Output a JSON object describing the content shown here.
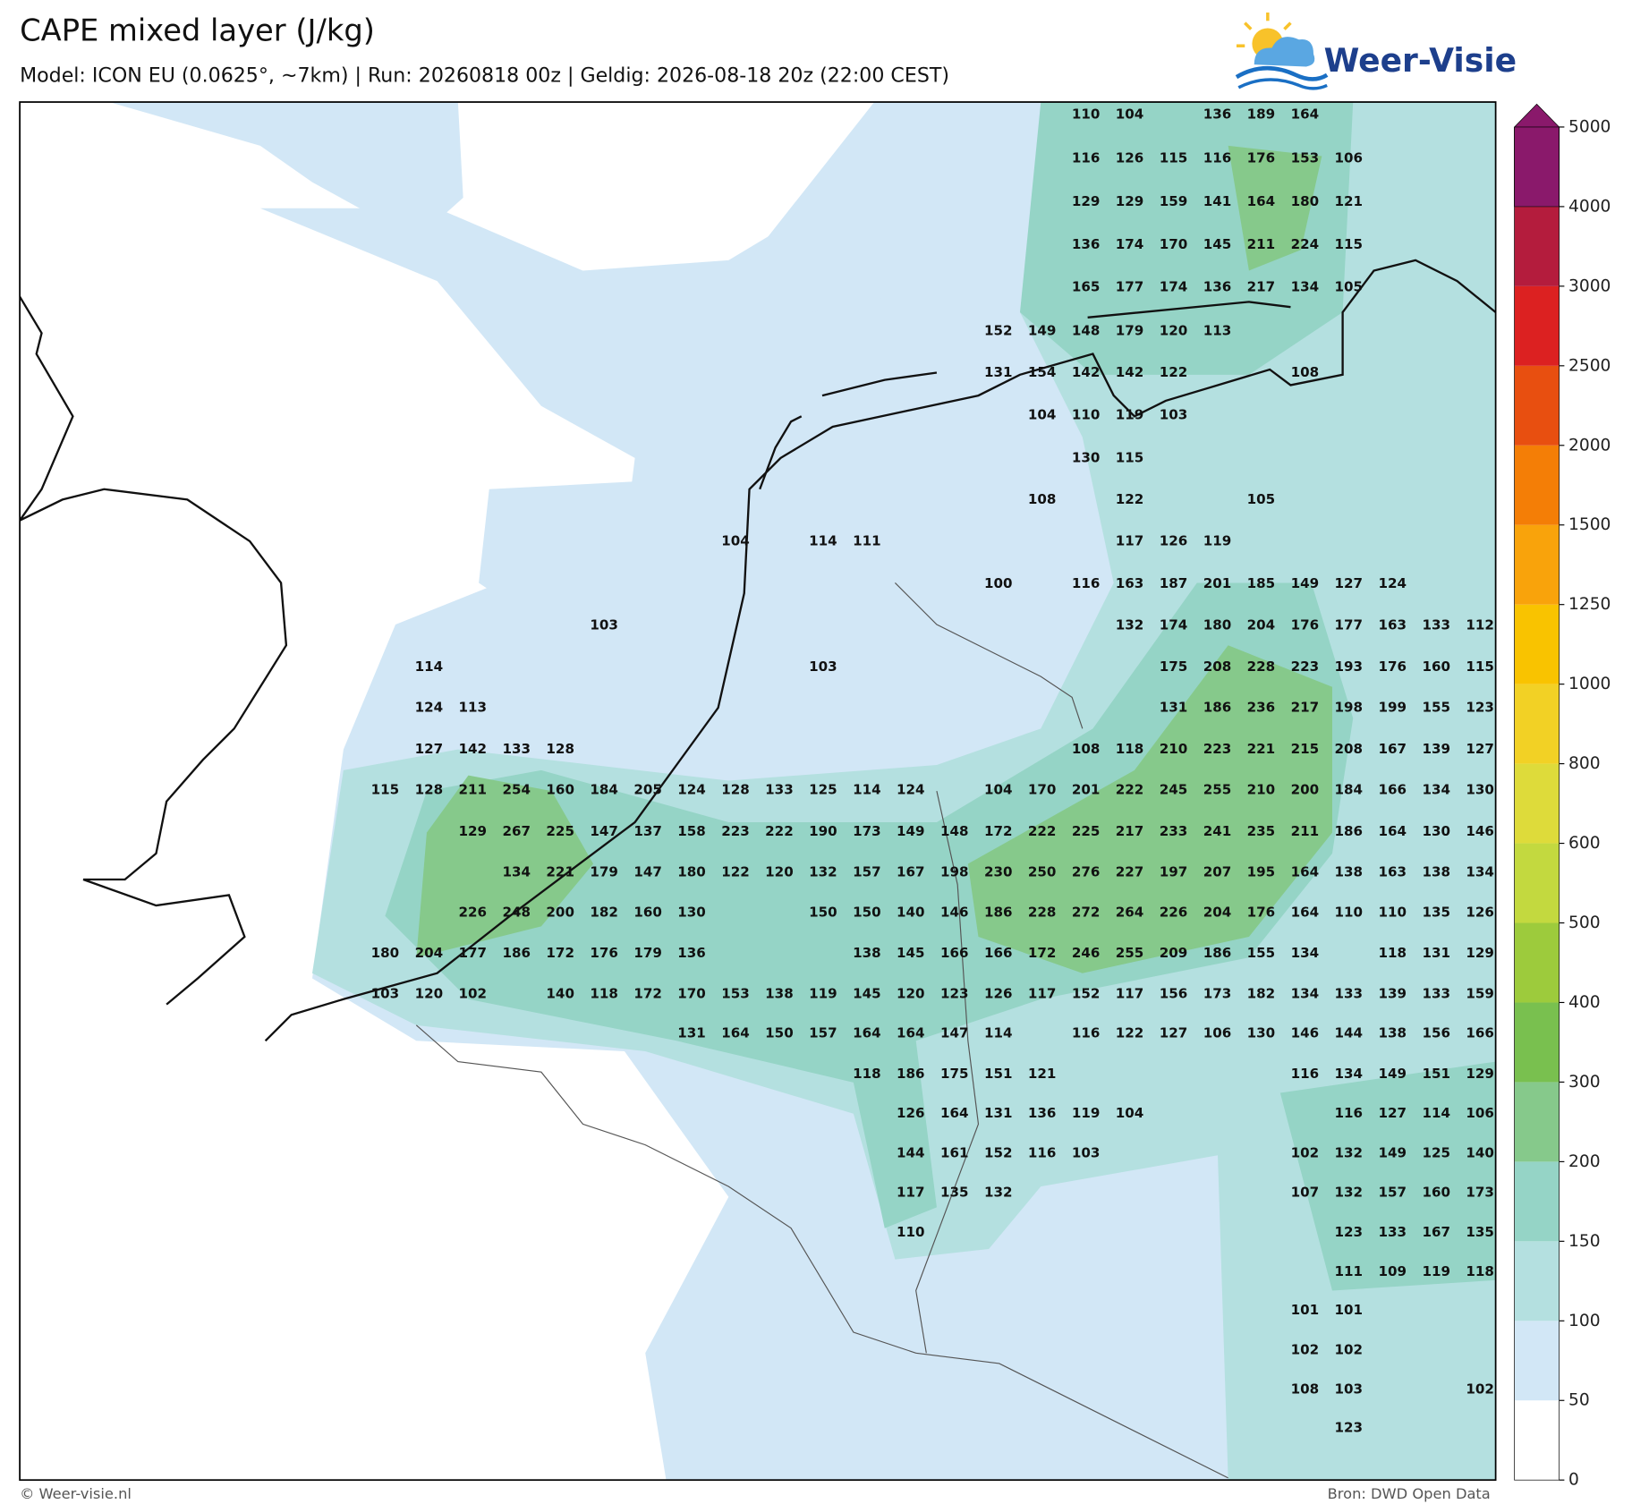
{
  "header": {
    "title": "CAPE mixed layer (J/kg)",
    "subtitle": "Model: ICON EU (0.0625°, ~7km)  |  Run: 20260818 00z  |  Geldig: 2026-08-18 20z (22:00 CEST)",
    "logo": "Weer-Visie"
  },
  "footer": {
    "copyright": "© Weer-visie.nl",
    "source": "Bron: DWD Open Data"
  },
  "colorbar": {
    "levels": [
      0,
      50,
      100,
      150,
      200,
      300,
      400,
      500,
      600,
      800,
      1000,
      1250,
      1500,
      2000,
      2500,
      3000,
      4000,
      5000
    ],
    "colors": [
      "#ffffff",
      "#d2e7f6",
      "#b4e0e0",
      "#95d4c6",
      "#86c98b",
      "#79c04f",
      "#9dcb3c",
      "#c3d93f",
      "#dedb3a",
      "#f2d125",
      "#f9c300",
      "#f9a30b",
      "#f47e06",
      "#e84f10",
      "#dc2121",
      "#b41c3d",
      "#8a196b"
    ]
  },
  "map": {
    "labels": [
      [
        null,
        null,
        null,
        null,
        null,
        null,
        null,
        null,
        null,
        null,
        null,
        null,
        null,
        null,
        null,
        null,
        110,
        104,
        null,
        136,
        189,
        164,
        null,
        null,
        null,
        null
      ],
      [
        null,
        null,
        null,
        null,
        null,
        null,
        null,
        null,
        null,
        null,
        null,
        null,
        null,
        null,
        null,
        null,
        116,
        126,
        115,
        116,
        176,
        153,
        106,
        null,
        null,
        null
      ],
      [
        null,
        null,
        null,
        null,
        null,
        null,
        null,
        null,
        null,
        null,
        null,
        null,
        null,
        null,
        null,
        null,
        129,
        129,
        159,
        141,
        164,
        180,
        121,
        null,
        null,
        null
      ],
      [
        null,
        null,
        null,
        null,
        null,
        null,
        null,
        null,
        null,
        null,
        null,
        null,
        null,
        null,
        null,
        null,
        136,
        174,
        170,
        145,
        211,
        224,
        115,
        null,
        null,
        null
      ],
      [
        null,
        null,
        null,
        null,
        null,
        null,
        null,
        null,
        null,
        null,
        null,
        null,
        null,
        null,
        null,
        null,
        165,
        177,
        174,
        136,
        217,
        134,
        105,
        null,
        null,
        null
      ],
      [
        null,
        null,
        null,
        null,
        null,
        null,
        null,
        null,
        null,
        null,
        null,
        null,
        null,
        null,
        152,
        149,
        148,
        179,
        120,
        113,
        null,
        null,
        null,
        null,
        null,
        null
      ],
      [
        null,
        null,
        null,
        null,
        null,
        null,
        null,
        null,
        null,
        null,
        null,
        null,
        null,
        null,
        131,
        154,
        142,
        142,
        122,
        null,
        null,
        108,
        null,
        null,
        null,
        null
      ],
      [
        null,
        null,
        null,
        null,
        null,
        null,
        null,
        null,
        null,
        null,
        null,
        null,
        null,
        null,
        null,
        104,
        110,
        119,
        103,
        null,
        null,
        null,
        null,
        null,
        null,
        null
      ],
      [
        null,
        null,
        null,
        null,
        null,
        null,
        null,
        null,
        null,
        null,
        null,
        null,
        null,
        null,
        null,
        null,
        130,
        115,
        null,
        null,
        null,
        null,
        null,
        null,
        null,
        null
      ],
      [
        null,
        null,
        null,
        null,
        null,
        null,
        null,
        null,
        null,
        null,
        null,
        null,
        null,
        null,
        null,
        108,
        null,
        122,
        null,
        null,
        105,
        null,
        null,
        null,
        null,
        null
      ],
      [
        null,
        null,
        null,
        null,
        null,
        null,
        null,
        null,
        104,
        null,
        114,
        111,
        null,
        null,
        null,
        null,
        null,
        117,
        126,
        119,
        null,
        null,
        null,
        null,
        null,
        null
      ],
      [
        null,
        null,
        null,
        null,
        null,
        null,
        null,
        null,
        null,
        null,
        null,
        null,
        null,
        null,
        100,
        null,
        116,
        163,
        187,
        201,
        185,
        149,
        127,
        124,
        null,
        null
      ],
      [
        null,
        null,
        null,
        null,
        null,
        103,
        null,
        null,
        null,
        null,
        null,
        null,
        null,
        null,
        null,
        null,
        null,
        132,
        174,
        180,
        204,
        176,
        177,
        163,
        133,
        112
      ],
      [
        null,
        114,
        null,
        null,
        null,
        null,
        null,
        null,
        null,
        null,
        103,
        null,
        null,
        null,
        null,
        null,
        null,
        null,
        175,
        208,
        228,
        223,
        193,
        176,
        160,
        115
      ],
      [
        null,
        124,
        113,
        null,
        null,
        null,
        null,
        null,
        null,
        null,
        null,
        null,
        null,
        null,
        null,
        null,
        null,
        null,
        131,
        186,
        236,
        217,
        198,
        199,
        155,
        123
      ],
      [
        null,
        127,
        142,
        133,
        128,
        null,
        null,
        null,
        null,
        null,
        null,
        null,
        null,
        null,
        null,
        null,
        108,
        118,
        210,
        223,
        221,
        215,
        208,
        167,
        139,
        127
      ],
      [
        115,
        128,
        211,
        254,
        160,
        184,
        205,
        124,
        128,
        133,
        125,
        114,
        124,
        null,
        104,
        170,
        201,
        222,
        245,
        255,
        210,
        200,
        184,
        166,
        134,
        130
      ],
      [
        null,
        null,
        129,
        267,
        225,
        147,
        137,
        158,
        223,
        222,
        190,
        173,
        149,
        148,
        172,
        222,
        225,
        217,
        233,
        241,
        235,
        211,
        186,
        164,
        130,
        146
      ],
      [
        null,
        null,
        null,
        134,
        221,
        179,
        147,
        180,
        122,
        120,
        132,
        157,
        167,
        198,
        230,
        250,
        276,
        227,
        197,
        207,
        195,
        164,
        138,
        163,
        138,
        134
      ],
      [
        null,
        null,
        226,
        248,
        200,
        182,
        160,
        130,
        null,
        null,
        150,
        150,
        140,
        146,
        186,
        228,
        272,
        264,
        226,
        204,
        176,
        164,
        110,
        110,
        135,
        126
      ],
      [
        180,
        204,
        177,
        186,
        172,
        176,
        179,
        136,
        null,
        null,
        null,
        138,
        145,
        166,
        166,
        172,
        246,
        255,
        209,
        186,
        155,
        134,
        null,
        118,
        131,
        129
      ],
      [
        103,
        120,
        102,
        null,
        140,
        118,
        172,
        170,
        153,
        138,
        119,
        145,
        120,
        123,
        126,
        117,
        152,
        117,
        156,
        173,
        182,
        134,
        133,
        139,
        133,
        159
      ],
      [
        null,
        null,
        null,
        null,
        null,
        null,
        null,
        131,
        164,
        150,
        157,
        164,
        164,
        147,
        114,
        null,
        116,
        122,
        127,
        106,
        130,
        146,
        144,
        138,
        156,
        166
      ],
      [
        null,
        null,
        null,
        null,
        null,
        null,
        null,
        null,
        null,
        null,
        null,
        118,
        186,
        175,
        151,
        121,
        null,
        null,
        null,
        null,
        null,
        116,
        134,
        149,
        151,
        129
      ],
      [
        null,
        null,
        null,
        null,
        null,
        null,
        null,
        null,
        null,
        null,
        null,
        null,
        126,
        164,
        131,
        136,
        119,
        104,
        null,
        null,
        null,
        null,
        116,
        127,
        114,
        106
      ],
      [
        null,
        null,
        null,
        null,
        null,
        null,
        null,
        null,
        null,
        null,
        null,
        null,
        144,
        161,
        152,
        116,
        103,
        null,
        null,
        null,
        null,
        102,
        132,
        149,
        125,
        140
      ],
      [
        null,
        null,
        null,
        null,
        null,
        null,
        null,
        null,
        null,
        null,
        null,
        null,
        117,
        135,
        132,
        null,
        null,
        null,
        null,
        null,
        null,
        107,
        132,
        157,
        160,
        173
      ],
      [
        null,
        null,
        null,
        null,
        null,
        null,
        null,
        null,
        null,
        null,
        null,
        null,
        110,
        null,
        null,
        null,
        null,
        null,
        null,
        null,
        null,
        null,
        123,
        133,
        167,
        135
      ],
      [
        null,
        null,
        null,
        null,
        null,
        null,
        null,
        null,
        null,
        null,
        null,
        null,
        null,
        null,
        null,
        null,
        null,
        null,
        null,
        null,
        null,
        null,
        111,
        109,
        119,
        118
      ],
      [
        null,
        null,
        null,
        null,
        null,
        null,
        null,
        null,
        null,
        null,
        null,
        null,
        null,
        null,
        null,
        null,
        null,
        null,
        null,
        null,
        null,
        101,
        101,
        null,
        null,
        null
      ],
      [
        null,
        null,
        null,
        null,
        null,
        null,
        null,
        null,
        null,
        null,
        null,
        null,
        null,
        null,
        null,
        null,
        null,
        null,
        null,
        null,
        null,
        102,
        102,
        null,
        null,
        null
      ],
      [
        null,
        null,
        null,
        null,
        null,
        null,
        null,
        null,
        null,
        null,
        null,
        null,
        null,
        null,
        null,
        null,
        null,
        null,
        null,
        null,
        null,
        108,
        103,
        null,
        null,
        102
      ],
      [
        null,
        null,
        null,
        null,
        null,
        null,
        null,
        null,
        null,
        null,
        null,
        null,
        null,
        null,
        null,
        null,
        null,
        null,
        null,
        null,
        null,
        null,
        123,
        null,
        null,
        null
      ]
    ]
  }
}
